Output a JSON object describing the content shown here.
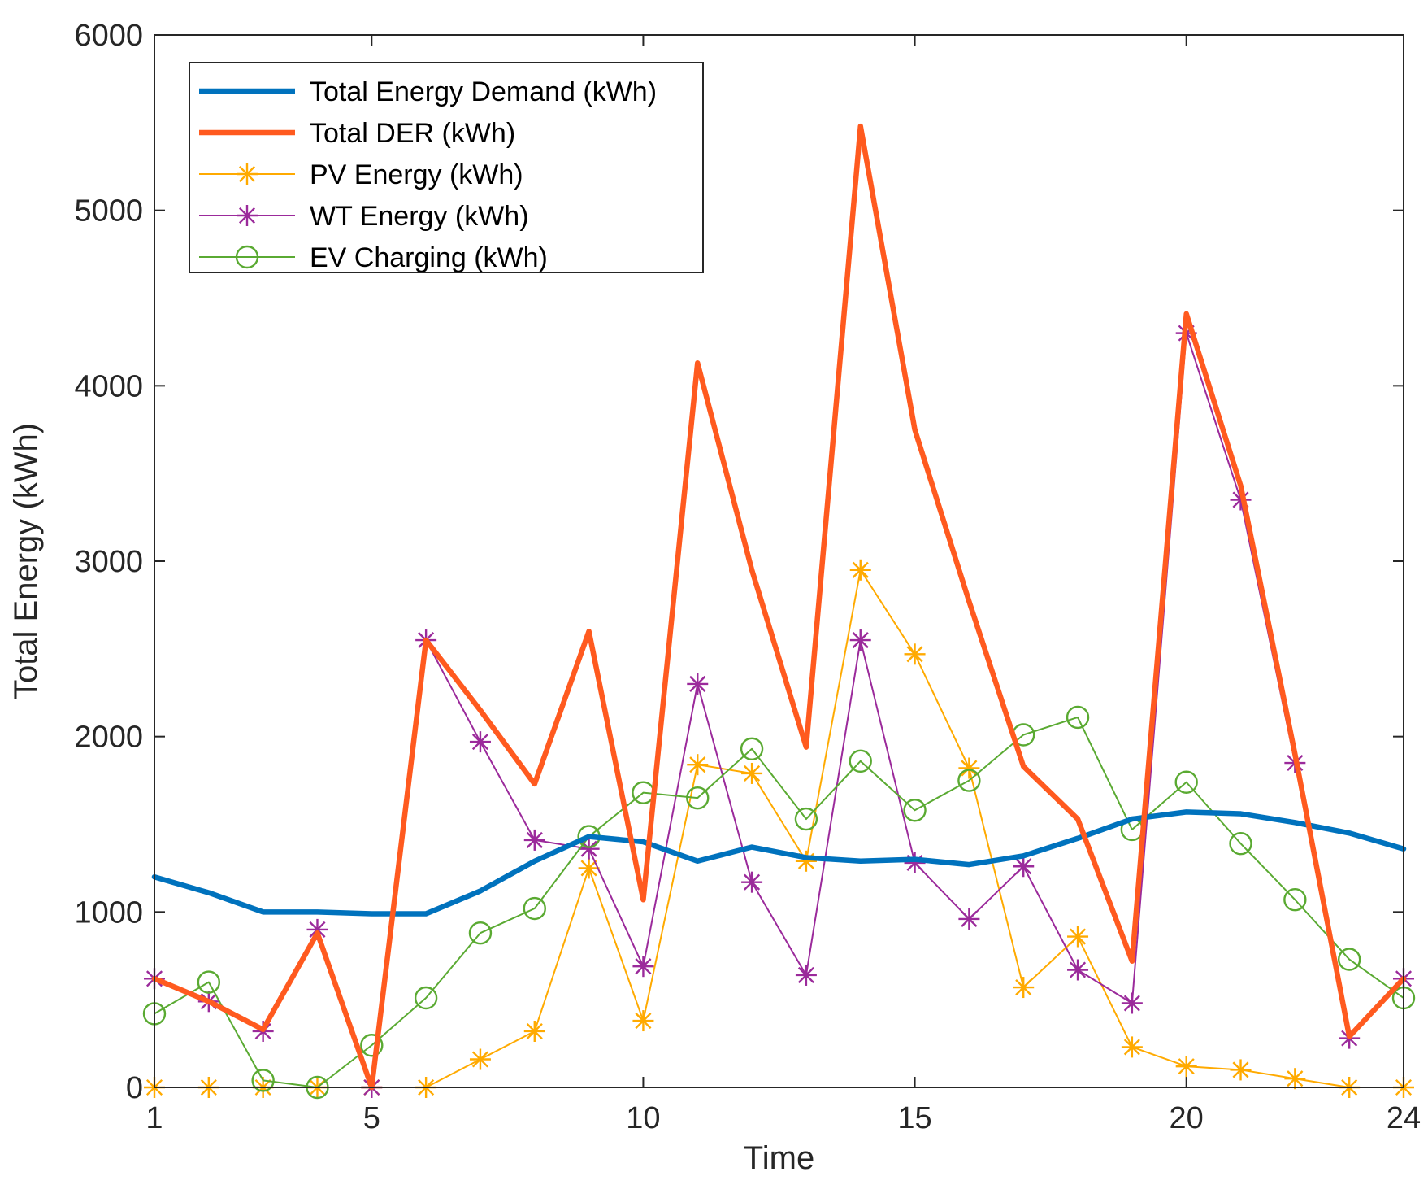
{
  "chart_data": {
    "type": "line",
    "xlabel": "Time",
    "ylabel": "Total Energy (kWh)",
    "xlim": [
      1,
      24
    ],
    "ylim": [
      0,
      6000
    ],
    "xticks": [
      1,
      5,
      10,
      15,
      20,
      24
    ],
    "yticks": [
      0,
      1000,
      2000,
      3000,
      4000,
      5000,
      6000
    ],
    "legend_position": "top-left",
    "x": [
      1,
      2,
      3,
      4,
      5,
      6,
      7,
      8,
      9,
      10,
      11,
      12,
      13,
      14,
      15,
      16,
      17,
      18,
      19,
      20,
      21,
      22,
      23,
      24
    ],
    "series": [
      {
        "name": "Total Energy Demand (kWh)",
        "color": "#0072BD",
        "marker": "none",
        "width": "thick",
        "values": [
          1200,
          1110,
          1000,
          1000,
          990,
          990,
          1120,
          1290,
          1430,
          1400,
          1290,
          1370,
          1310,
          1290,
          1300,
          1270,
          1320,
          1420,
          1530,
          1570,
          1560,
          1510,
          1450,
          1360
        ]
      },
      {
        "name": "Total DER (kWh)",
        "color": "#FF5A1F",
        "marker": "none",
        "width": "thick",
        "values": [
          620,
          490,
          330,
          880,
          0,
          2550,
          2150,
          1730,
          2600,
          1070,
          4130,
          2950,
          1940,
          5480,
          3750,
          2770,
          1830,
          1530,
          720,
          4410,
          3430,
          1900,
          290,
          620
        ]
      },
      {
        "name": "PV Energy (kWh)",
        "color": "#FFAA00",
        "marker": "asterisk",
        "width": "thin",
        "values": [
          0,
          0,
          0,
          0,
          0,
          0,
          160,
          320,
          1250,
          380,
          1840,
          1790,
          1290,
          2950,
          2470,
          1820,
          570,
          860,
          230,
          120,
          100,
          50,
          0,
          0
        ]
      },
      {
        "name": "WT Energy (kWh)",
        "color": "#9B2A9B",
        "marker": "asterisk",
        "width": "thin",
        "values": [
          620,
          490,
          320,
          900,
          0,
          2550,
          1970,
          1410,
          1360,
          690,
          2300,
          1170,
          640,
          2550,
          1280,
          960,
          1260,
          670,
          480,
          4300,
          3350,
          1850,
          280,
          620
        ]
      },
      {
        "name": "EV Charging (kWh)",
        "color": "#5AAA32",
        "marker": "circle",
        "width": "thin",
        "values": [
          420,
          600,
          40,
          0,
          240,
          510,
          880,
          1020,
          1430,
          1680,
          1650,
          1930,
          1530,
          1860,
          1580,
          1750,
          2010,
          2110,
          1470,
          1740,
          1390,
          1070,
          730,
          510
        ]
      }
    ]
  }
}
